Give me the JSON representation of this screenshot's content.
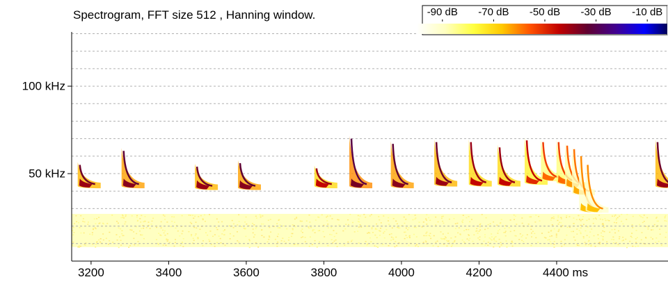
{
  "chart_data": {
    "type": "spectrogram",
    "title": "Spectrogram, FFT size 512 , Hanning window.",
    "xlim": [
      3150,
      4687
    ],
    "xticks": [
      3200,
      3400,
      3600,
      3800,
      4000,
      4200,
      {
        "value": 4400,
        "label": "4400 ms"
      }
    ],
    "ylim": [
      0,
      131
    ],
    "yticks": [
      {
        "value": 50,
        "label": "50 kHz"
      },
      {
        "value": 100,
        "label": "100 kHz"
      }
    ],
    "minor_yticks": [
      10,
      20,
      30,
      40,
      50,
      60,
      70,
      80,
      90,
      100,
      110,
      120,
      130
    ],
    "grid": true,
    "colorbar": {
      "lim": [
        -100,
        0
      ],
      "ticks": [
        {
          "value": -90,
          "label": "-90 dB"
        },
        {
          "value": -70,
          "label": "-70 dB"
        },
        {
          "value": -50,
          "label": "-50 dB"
        },
        {
          "value": -30,
          "label": "-30 dB"
        },
        {
          "value": -10,
          "label": "-10 dB"
        }
      ],
      "colors": [
        "#ffffff",
        "#ffffc0",
        "#ffff40",
        "#ffc800",
        "#ff5000",
        "#c00000",
        "#600030",
        "#400090",
        "#0000ff",
        "#000030"
      ]
    },
    "noise_band": {
      "low": 8,
      "high": 27,
      "level": -78
    },
    "calls": [
      {
        "time": 3171,
        "top_freq": 55,
        "end_freq": 44,
        "level": -40
      },
      {
        "time": 3284,
        "top_freq": 63,
        "end_freq": 44,
        "level": -38
      },
      {
        "time": 3473,
        "top_freq": 54,
        "end_freq": 43,
        "level": -40
      },
      {
        "time": 3584,
        "top_freq": 56,
        "end_freq": 43,
        "level": -38
      },
      {
        "time": 3781,
        "top_freq": 53,
        "end_freq": 44,
        "level": -45
      },
      {
        "time": 3871,
        "top_freq": 70,
        "end_freq": 44,
        "level": -36
      },
      {
        "time": 3978,
        "top_freq": 67,
        "end_freq": 44,
        "level": -38
      },
      {
        "time": 4090,
        "top_freq": 68,
        "end_freq": 45,
        "level": -40
      },
      {
        "time": 4179,
        "top_freq": 68,
        "end_freq": 45,
        "level": -45
      },
      {
        "time": 4253,
        "top_freq": 65,
        "end_freq": 45,
        "level": -45
      },
      {
        "time": 4323,
        "top_freq": 69,
        "end_freq": 46,
        "level": -50
      },
      {
        "time": 4365,
        "top_freq": 68,
        "end_freq": 48,
        "level": -58
      },
      {
        "time": 4405,
        "top_freq": 68,
        "end_freq": 46,
        "level": -58
      },
      {
        "time": 4427,
        "top_freq": 66,
        "end_freq": 44,
        "level": -62
      },
      {
        "time": 4445,
        "top_freq": 64,
        "end_freq": 40,
        "level": -64
      },
      {
        "time": 4463,
        "top_freq": 60,
        "end_freq": 30,
        "level": -66
      },
      {
        "time": 4480,
        "top_freq": 55,
        "end_freq": 30,
        "level": -66
      },
      {
        "time": 4660,
        "top_freq": 68,
        "end_freq": 44,
        "level": -40
      }
    ]
  }
}
